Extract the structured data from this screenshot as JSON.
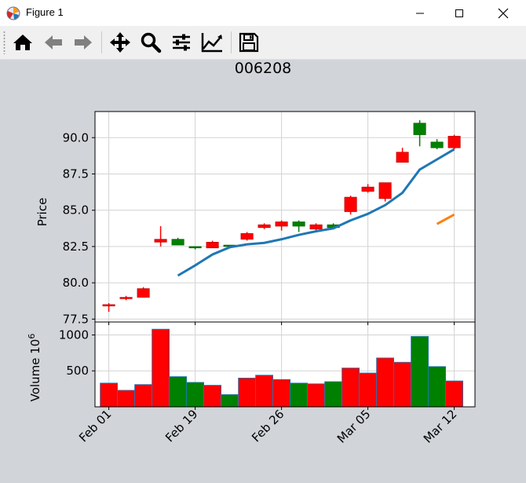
{
  "window": {
    "title": "Figure 1"
  },
  "toolbar": {
    "buttons": [
      {
        "name": "home-icon"
      },
      {
        "name": "back-icon"
      },
      {
        "name": "forward-icon"
      },
      {
        "name": "pan-icon"
      },
      {
        "name": "zoom-icon"
      },
      {
        "name": "subplots-icon"
      },
      {
        "name": "edit-curves-icon"
      },
      {
        "name": "save-icon"
      }
    ]
  },
  "colors": {
    "up": "#008000",
    "down": "#ff0000",
    "ma_short": "#1f77b4",
    "ma_long": "#ff7f0e",
    "grid": "#d3d3d3"
  },
  "chart_data": {
    "type": "candlestick",
    "title": "006208",
    "price_panel": {
      "ylabel": "Price",
      "ylim": [
        77.3,
        91.8
      ],
      "yticks": [
        77.5,
        80.0,
        82.5,
        85.0,
        87.5,
        90.0
      ],
      "ytick_labels": [
        "77.5",
        "80.0",
        "82.5",
        "85.0",
        "87.5",
        "90.0"
      ],
      "grid": true
    },
    "volume_panel": {
      "ylabel": "Volume  10",
      "ylabel_exponent": "6",
      "ylim": [
        0,
        1180
      ],
      "yticks": [
        500,
        1000
      ],
      "ytick_labels": [
        "500",
        "1000"
      ],
      "grid": true
    },
    "xlim": [
      -0.8,
      21.2
    ],
    "xticks": [
      {
        "index": 0,
        "label": "Feb 01"
      },
      {
        "index": 5,
        "label": "Feb 19"
      },
      {
        "index": 10,
        "label": "Feb 26"
      },
      {
        "index": 15,
        "label": "Mar 05"
      },
      {
        "index": 20,
        "label": "Mar 12"
      }
    ],
    "candles": [
      {
        "open": 78.5,
        "high": 78.6,
        "low": 78.0,
        "close": 78.4,
        "volume": 330
      },
      {
        "open": 79.0,
        "high": 79.1,
        "low": 78.8,
        "close": 78.9,
        "volume": 230
      },
      {
        "open": 79.6,
        "high": 79.7,
        "low": 79.0,
        "close": 79.0,
        "volume": 310
      },
      {
        "open": 83.0,
        "high": 83.9,
        "low": 82.5,
        "close": 82.8,
        "volume": 1080
      },
      {
        "open": 82.6,
        "high": 83.1,
        "low": 82.6,
        "close": 83.0,
        "volume": 420
      },
      {
        "open": 82.4,
        "high": 82.5,
        "low": 82.3,
        "close": 82.5,
        "volume": 340
      },
      {
        "open": 82.8,
        "high": 82.9,
        "low": 82.4,
        "close": 82.4,
        "volume": 300
      },
      {
        "open": 82.5,
        "high": 82.6,
        "low": 82.4,
        "close": 82.6,
        "volume": 170
      },
      {
        "open": 83.4,
        "high": 83.5,
        "low": 82.9,
        "close": 83.0,
        "volume": 400
      },
      {
        "open": 84.0,
        "high": 84.1,
        "low": 83.7,
        "close": 83.8,
        "volume": 440
      },
      {
        "open": 84.2,
        "high": 84.3,
        "low": 83.6,
        "close": 83.9,
        "volume": 380
      },
      {
        "open": 83.9,
        "high": 84.3,
        "low": 83.5,
        "close": 84.2,
        "volume": 330
      },
      {
        "open": 84.0,
        "high": 84.1,
        "low": 83.6,
        "close": 83.7,
        "volume": 320
      },
      {
        "open": 83.8,
        "high": 84.1,
        "low": 83.8,
        "close": 84.0,
        "volume": 350
      },
      {
        "open": 85.9,
        "high": 86.0,
        "low": 84.7,
        "close": 84.9,
        "volume": 540
      },
      {
        "open": 86.6,
        "high": 86.8,
        "low": 86.2,
        "close": 86.3,
        "volume": 470
      },
      {
        "open": 86.9,
        "high": 86.9,
        "low": 85.6,
        "close": 85.8,
        "volume": 680
      },
      {
        "open": 89.0,
        "high": 89.3,
        "low": 88.3,
        "close": 88.3,
        "volume": 620
      },
      {
        "open": 90.2,
        "high": 91.2,
        "low": 89.4,
        "close": 91.0,
        "volume": 980
      },
      {
        "open": 89.3,
        "high": 89.9,
        "low": 89.2,
        "close": 89.7,
        "volume": 560
      },
      {
        "open": 90.1,
        "high": 90.2,
        "low": 89.2,
        "close": 89.3,
        "volume": 360
      }
    ],
    "series": [
      {
        "values": [
          null,
          null,
          null,
          null,
          80.5,
          81.2,
          81.95,
          82.45,
          82.65,
          82.75,
          83.0,
          83.3,
          83.55,
          83.75,
          84.3,
          84.75,
          85.35,
          86.2,
          87.8,
          88.5,
          89.2
        ]
      },
      {
        "values": [
          null,
          null,
          null,
          null,
          null,
          null,
          null,
          null,
          null,
          null,
          null,
          null,
          null,
          null,
          null,
          null,
          null,
          null,
          null,
          84.05,
          84.7
        ]
      }
    ]
  }
}
